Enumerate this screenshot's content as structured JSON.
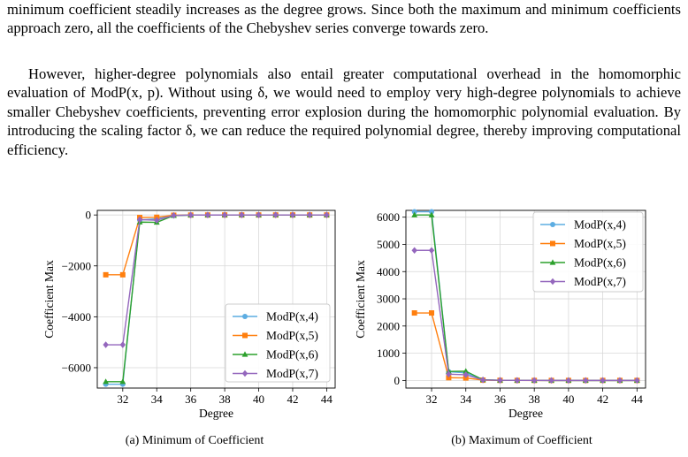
{
  "text": {
    "paragraph1": "minimum coefficient steadily increases as the degree grows. Since both the maximum and minimum coefficients approach zero, all the coefficients of the Chebyshev series converge towards zero.",
    "paragraph2": "However, higher-degree polynomials also entail greater computational overhead in the homomorphic evaluation of ModP(x, p). Without using δ, we would need to employ very high-degree polynomials to achieve smaller Chebyshev coefficients, preventing error explosion during the homomorphic polynomial evaluation. By introducing the scaling factor δ, we can reduce the required polynomial degree, thereby improving computational efficiency."
  },
  "captions": {
    "a": "(a) Minimum of Coefficient",
    "b": "(b) Maximum of Coefficient"
  },
  "colors": {
    "ModP(x,4)": "#5DADE2",
    "ModP(x,5)": "#FF7F0E",
    "ModP(x,6)": "#2CA02C",
    "ModP(x,7)": "#9467BD"
  },
  "chart_data": [
    {
      "type": "line",
      "xlabel": "Degree",
      "ylabel": "Coefficient Max",
      "x": [
        31,
        32,
        33,
        34,
        35,
        36,
        37,
        38,
        39,
        40,
        41,
        42,
        43,
        44
      ],
      "xticks": [
        32,
        34,
        36,
        38,
        40,
        42,
        44
      ],
      "yticks": [
        0,
        -2000,
        -4000,
        -6000
      ],
      "ytick_labels": [
        "0",
        "−2000",
        "−4000",
        "−6000"
      ],
      "xlim": [
        30.5,
        44.5
      ],
      "ylim": [
        -6800,
        180
      ],
      "grid": true,
      "legend": "lower-right",
      "series": [
        {
          "name": "ModP(x,4)",
          "marker": "circle",
          "values": [
            -6650,
            -6650,
            -200,
            -150,
            -20,
            -5,
            -2,
            -1,
            0,
            0,
            0,
            0,
            0,
            0
          ]
        },
        {
          "name": "ModP(x,5)",
          "marker": "square",
          "values": [
            -2350,
            -2350,
            -100,
            -90,
            -10,
            -3,
            -1,
            0,
            0,
            0,
            0,
            0,
            0,
            0
          ]
        },
        {
          "name": "ModP(x,6)",
          "marker": "triangle",
          "values": [
            -6550,
            -6550,
            -280,
            -290,
            -25,
            -6,
            -2,
            -1,
            0,
            0,
            0,
            0,
            0,
            0
          ]
        },
        {
          "name": "ModP(x,7)",
          "marker": "diamond",
          "values": [
            -5100,
            -5100,
            -180,
            -210,
            -18,
            -5,
            -2,
            -1,
            0,
            0,
            0,
            0,
            0,
            0
          ]
        }
      ]
    },
    {
      "type": "line",
      "xlabel": "Degree",
      "ylabel": "Coefficient Max",
      "x": [
        31,
        32,
        33,
        34,
        35,
        36,
        37,
        38,
        39,
        40,
        41,
        42,
        43,
        44
      ],
      "xticks": [
        32,
        34,
        36,
        38,
        40,
        42,
        44
      ],
      "yticks": [
        0,
        1000,
        2000,
        3000,
        4000,
        5000,
        6000
      ],
      "ytick_labels": [
        "0",
        "1000",
        "2000",
        "3000",
        "4000",
        "5000",
        "6000"
      ],
      "xlim": [
        30.5,
        44.5
      ],
      "ylim": [
        -280,
        6250
      ],
      "grid": true,
      "legend": "upper-right",
      "series": [
        {
          "name": "ModP(x,4)",
          "marker": "circle",
          "values": [
            6200,
            6200,
            320,
            280,
            20,
            5,
            2,
            1,
            0,
            0,
            0,
            0,
            0,
            0
          ]
        },
        {
          "name": "ModP(x,5)",
          "marker": "square",
          "values": [
            2480,
            2480,
            100,
            90,
            10,
            3,
            1,
            0,
            0,
            0,
            0,
            0,
            0,
            0
          ]
        },
        {
          "name": "ModP(x,6)",
          "marker": "triangle",
          "values": [
            6080,
            6080,
            330,
            340,
            25,
            6,
            2,
            1,
            0,
            0,
            0,
            0,
            0,
            0
          ]
        },
        {
          "name": "ModP(x,7)",
          "marker": "diamond",
          "values": [
            4780,
            4780,
            230,
            210,
            18,
            5,
            2,
            1,
            0,
            0,
            0,
            0,
            0,
            0
          ]
        }
      ]
    }
  ]
}
